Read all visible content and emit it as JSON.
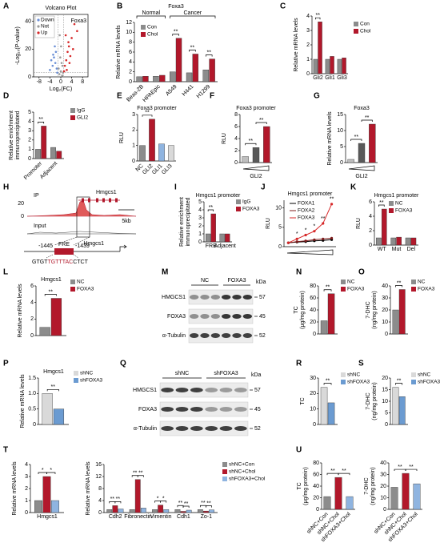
{
  "panel_labels": [
    "A",
    "B",
    "C",
    "D",
    "E",
    "F",
    "G",
    "H",
    "I",
    "J",
    "K",
    "L",
    "M",
    "N",
    "O",
    "P",
    "Q",
    "R",
    "S",
    "T",
    "U"
  ],
  "chart_data": [
    {
      "type": "scatter",
      "title": "Volcano Plot",
      "xlabel": "Log₂(FC)",
      "ylabel": [
        "-Log₁₀(P-value)"
      ],
      "annotations": [
        "Foxa3"
      ],
      "series": [
        {
          "name": "Down",
          "color": "#6b8fd6",
          "x": [
            -1.5,
            -2,
            -2.5,
            -3,
            -4,
            -1.8,
            -2.2,
            -3.5,
            -1.3,
            -2.8
          ],
          "values": [
            6,
            10,
            14,
            8,
            5,
            18,
            22,
            12,
            3,
            16
          ]
        },
        {
          "name": "Not",
          "color": "#9a9a9a",
          "x": [
            -0.5,
            0,
            0.5,
            -0.8,
            0.3,
            0.8,
            -0.2,
            0.1,
            -0.4,
            0.6
          ],
          "values": [
            2,
            4,
            1,
            6,
            10,
            3,
            14,
            22,
            30,
            8
          ]
        },
        {
          "name": "Up",
          "color": "#d62728",
          "x": [
            1.5,
            2,
            2.5,
            3,
            3.5,
            4,
            5,
            2.2,
            3.2,
            4.5,
            1.8,
            2.8,
            6,
            1.2
          ],
          "values": [
            8,
            12,
            18,
            22,
            15,
            28,
            38,
            5,
            10,
            20,
            30,
            25,
            33,
            4
          ]
        }
      ],
      "xlim": [
        -10,
        10
      ],
      "xticks": [
        -8,
        -4,
        0,
        4,
        8
      ],
      "ylim": [
        0,
        45
      ],
      "yticks": [
        0,
        20,
        40
      ]
    },
    {
      "type": "bar",
      "title": "Foxa3",
      "groups": [
        "Normal",
        "Cancer"
      ],
      "ylabel": [
        "Relative mRNA levels"
      ],
      "categories": [
        "Beas-2B",
        "HPAEpic",
        "A549",
        "H441",
        "H1299"
      ],
      "series": [
        {
          "name": "Con",
          "color": "#8c8c8c",
          "values": [
            1,
            1.1,
            2,
            1.8,
            2.4
          ]
        },
        {
          "name": "Chol",
          "color": "#b2182b",
          "values": [
            1.1,
            1.3,
            8.8,
            5.6,
            4.6
          ]
        }
      ],
      "ylim": [
        0,
        12
      ],
      "yticks": [
        0,
        2,
        4,
        6,
        8,
        10,
        12
      ],
      "annotations": [
        "**",
        "**",
        "**"
      ]
    },
    {
      "type": "bar",
      "ylabel": [
        "Relative mRNA levels"
      ],
      "categories": [
        "Gli2",
        "Gli1",
        "Gli3"
      ],
      "series": [
        {
          "name": "Con",
          "color": "#8c8c8c",
          "values": [
            1,
            1,
            1
          ]
        },
        {
          "name": "Chol",
          "color": "#b2182b",
          "values": [
            3.6,
            1.2,
            1.1
          ]
        }
      ],
      "ylim": [
        0,
        4
      ],
      "yticks": [
        0,
        1,
        2,
        3,
        4
      ],
      "annotations": [
        "**"
      ]
    },
    {
      "type": "bar",
      "ylabel": [
        "Relative enrichment",
        "immunoprecipitated"
      ],
      "categories": [
        "Promoter",
        "Adjacent"
      ],
      "series": [
        {
          "name": "IgG",
          "color": "#8c8c8c",
          "values": [
            1,
            1.2
          ]
        },
        {
          "name": "GLI2",
          "color": "#b2182b",
          "values": [
            3.5,
            0.8
          ]
        }
      ],
      "ylim": [
        0,
        5
      ],
      "yticks": [
        0,
        1,
        2,
        3,
        4,
        5
      ],
      "annotations": [
        "**"
      ]
    },
    {
      "type": "bar",
      "title": "Foxa3 promoter",
      "ylabel": [
        "RLU"
      ],
      "categories": [
        "NC",
        "GLI2",
        "GLI1",
        "GLI3"
      ],
      "values": [
        1,
        2.7,
        1.1,
        1
      ],
      "colors": [
        "#8c8c8c",
        "#b2182b",
        "#8fb4e0",
        "#d9d9d9"
      ],
      "ylim": [
        0,
        3
      ],
      "yticks": [
        0,
        1,
        2,
        3
      ],
      "annotations": [
        "**"
      ]
    },
    {
      "type": "bar",
      "title": "Foxa3 promoter",
      "ylabel": [
        "RLU"
      ],
      "xlabel": "GLI2",
      "categories": [
        null,
        null,
        null
      ],
      "values": [
        1,
        2.5,
        6
      ],
      "colors": [
        "#bfbfbf",
        "#595959",
        "#b2182b"
      ],
      "ylim": [
        0,
        8
      ],
      "yticks": [
        0,
        2,
        4,
        6,
        8
      ],
      "annotations": [
        "**",
        "**"
      ]
    },
    {
      "type": "bar",
      "title": "Foxa3",
      "ylabel": [
        "Relative mRNA levels"
      ],
      "xlabel": "GLI2",
      "categories": [
        null,
        null,
        null
      ],
      "values": [
        1,
        6,
        12
      ],
      "colors": [
        "#bfbfbf",
        "#595959",
        "#b2182b"
      ],
      "ylim": [
        0,
        15
      ],
      "yticks": [
        0,
        5,
        10,
        15
      ],
      "annotations": [
        "**",
        "**"
      ]
    },
    {
      "type": "bar",
      "title": "Hmgcs1 promoter",
      "ylabel": [
        "Relative enrichment",
        "immunoprecipitated"
      ],
      "categories": [
        "FRE",
        "Adjacent"
      ],
      "series": [
        {
          "name": "IgG",
          "color": "#8c8c8c",
          "values": [
            1,
            1
          ]
        },
        {
          "name": "FOXA3",
          "color": "#b2182b",
          "values": [
            3.5,
            1
          ]
        }
      ],
      "ylim": [
        0,
        5
      ],
      "yticks": [
        0,
        1,
        2,
        3,
        4,
        5
      ],
      "annotations": [
        "**"
      ]
    },
    {
      "type": "line",
      "title": "Hmgcs1 promoter",
      "ylabel": [
        "RLU"
      ],
      "categories": [
        null,
        null,
        null,
        null,
        null,
        null
      ],
      "series": [
        {
          "name": "FOXA1",
          "color": "#000000",
          "values": [
            1,
            1.2,
            1.3,
            1.5,
            1.6,
            1.8
          ]
        },
        {
          "name": "FOXA2",
          "color": "#7f1d1d",
          "values": [
            1,
            1.3,
            1.5,
            1.8,
            2,
            2.2
          ]
        },
        {
          "name": "FOXA3",
          "color": "#d62728",
          "values": [
            1,
            2,
            3,
            4,
            6,
            11
          ]
        }
      ],
      "ylim": [
        0,
        12
      ],
      "yticks": [
        0,
        5,
        10
      ],
      "annotations": [
        "*",
        "*",
        "*",
        "**",
        "**"
      ]
    },
    {
      "type": "bar",
      "title": "Hmgcs1 promoter",
      "ylabel": [
        "RLU"
      ],
      "categories": [
        "WT",
        "Mut",
        "Del"
      ],
      "series": [
        {
          "name": "NC",
          "color": "#8c8c8c",
          "values": [
            1,
            1,
            1
          ]
        },
        {
          "name": "FOXA3",
          "color": "#b2182b",
          "values": [
            5,
            1.1,
            1
          ]
        }
      ],
      "ylim": [
        0,
        6
      ],
      "yticks": [
        0,
        2,
        4,
        6
      ],
      "annotations": [
        "**"
      ]
    },
    {
      "type": "bar",
      "title": "Hmgcs1",
      "ylabel": [
        "Relative mRNA levels"
      ],
      "categories": [
        null
      ],
      "series": [
        {
          "name": "NC",
          "color": "#8c8c8c",
          "values": [
            1
          ]
        },
        {
          "name": "FOXA3",
          "color": "#b2182b",
          "values": [
            4.5
          ]
        }
      ],
      "ylim": [
        0,
        6
      ],
      "yticks": [
        0,
        2,
        4,
        6
      ],
      "annotations": [
        "**"
      ]
    },
    {
      "type": "bar",
      "ylabel": [
        "TC",
        "(μg/mg protein)"
      ],
      "categories": [
        null
      ],
      "series": [
        {
          "name": "NC",
          "color": "#8c8c8c",
          "values": [
            22
          ]
        },
        {
          "name": "FOXA3",
          "color": "#b2182b",
          "values": [
            67
          ]
        }
      ],
      "ylim": [
        0,
        80
      ],
      "yticks": [
        0,
        20,
        40,
        60,
        80
      ],
      "annotations": [
        "**"
      ]
    },
    {
      "type": "bar",
      "ylabel": [
        "7-DHC",
        "(ng/mg protein)"
      ],
      "categories": [
        null
      ],
      "series": [
        {
          "name": "NC",
          "color": "#8c8c8c",
          "values": [
            20
          ]
        },
        {
          "name": "FOXA3",
          "color": "#b2182b",
          "values": [
            37
          ]
        }
      ],
      "ylim": [
        0,
        40
      ],
      "yticks": [
        0,
        10,
        20,
        30,
        40
      ],
      "annotations": [
        "**"
      ]
    },
    {
      "type": "bar",
      "title": "Hmgcs1",
      "ylabel": [
        "Relative mRNA levels"
      ],
      "categories": [
        null
      ],
      "series": [
        {
          "name": "shNC",
          "color": "#d9d9d9",
          "values": [
            1
          ]
        },
        {
          "name": "shFOXA3",
          "color": "#6b9bd1",
          "values": [
            0.5
          ]
        }
      ],
      "ylim": [
        0,
        1.5
      ],
      "yticks": [
        0,
        0.5,
        {
          "value": 1,
          "label": "1.0"
        },
        1.5
      ],
      "annotations": [
        "**"
      ]
    },
    {
      "type": "bar",
      "ylabel": [
        "TC"
      ],
      "categories": [
        null
      ],
      "series": [
        {
          "name": "shNC",
          "color": "#d9d9d9",
          "values": [
            24
          ]
        },
        {
          "name": "shFOXA3",
          "color": "#6b9bd1",
          "values": [
            14
          ]
        }
      ],
      "ylim": [
        0,
        30
      ],
      "yticks": [
        0,
        10,
        20,
        30
      ],
      "annotations": [
        "**"
      ]
    },
    {
      "type": "bar",
      "ylabel": [
        "7-DHC",
        "(ng/mg protein)"
      ],
      "categories": [
        null
      ],
      "series": [
        {
          "name": "shNC",
          "color": "#d9d9d9",
          "values": [
            16
          ]
        },
        {
          "name": "shFOXA3",
          "color": "#6b9bd1",
          "values": [
            12
          ]
        }
      ],
      "ylim": [
        0,
        20
      ],
      "yticks": [
        0,
        5,
        10,
        15,
        20
      ],
      "annotations": [
        "**"
      ]
    },
    {
      "type": "bar",
      "ylabel": [
        "Relative mRNA levels"
      ],
      "categories": [
        "Hmgcs1"
      ],
      "series": [
        {
          "color": "#8c8c8c",
          "values": [
            1
          ]
        },
        {
          "color": "#b2182b",
          "values": [
            3
          ]
        },
        {
          "color": "#8fb4e0",
          "values": [
            1
          ]
        }
      ],
      "ylim": [
        0,
        4
      ],
      "yticks": [
        0,
        1,
        2,
        3,
        4
      ],
      "annotations": [
        "*",
        "*"
      ]
    },
    {
      "type": "bar",
      "ylabel": [
        "Relative mRNA levels"
      ],
      "categories": [
        "Cdh2",
        "Fibronectin",
        "Vimentin",
        "Cdh1",
        "Zo-1"
      ],
      "series": [
        {
          "name": "shNC+Con",
          "color": "#8c8c8c",
          "values": [
            1,
            1,
            1,
            1,
            1
          ]
        },
        {
          "name": "shNC+Chol",
          "color": "#b2182b",
          "values": [
            2.3,
            11,
            2.5,
            0.4,
            0.5
          ]
        },
        {
          "name": "shFOXA3+Chol",
          "color": "#8fb4e0",
          "values": [
            1.2,
            1.5,
            1,
            0.8,
            0.9
          ]
        }
      ],
      "ylim": [
        0,
        16
      ],
      "yticks": [
        0,
        4,
        8,
        12,
        16
      ],
      "annotations": [
        "**",
        "**",
        "**",
        "**",
        "*",
        "*",
        "**",
        "**",
        "**",
        "**"
      ]
    },
    {
      "type": "bar",
      "ylabel": [
        "TC",
        "(μg/mg protein)"
      ],
      "categories": [
        "shNC+Con",
        "shNC+Chol",
        "shFOXA3+Chol"
      ],
      "values": [
        22,
        55,
        22
      ],
      "colors": [
        "#8c8c8c",
        "#b2182b",
        "#8fb4e0"
      ],
      "ylim": [
        0,
        80
      ],
      "yticks": [
        0,
        20,
        40,
        60,
        80
      ],
      "annotations": [
        "**",
        "**"
      ]
    },
    {
      "type": "bar",
      "ylabel": [
        "7-DHC",
        "(ng/mg protein)"
      ],
      "categories": [
        "shNC+Con",
        "shNC+Chol",
        "shFOXA3+Chol"
      ],
      "values": [
        19,
        31,
        22
      ],
      "colors": [
        "#8c8c8c",
        "#b2182b",
        "#8fb4e0"
      ],
      "ylim": [
        0,
        40
      ],
      "yticks": [
        0,
        10,
        20,
        30,
        40
      ],
      "annotations": [
        "**",
        "**"
      ]
    }
  ],
  "blots": [
    {
      "lanes": [
        "NC",
        "FOXA3"
      ],
      "proteins": [
        "HMGCS1",
        "FOXA3",
        "α-Tubulin"
      ],
      "unit": "kDa",
      "sizes": [
        57,
        45,
        52
      ]
    },
    {
      "lanes": [
        "shNC",
        "shFOXA3"
      ],
      "proteins": [
        "HMGCS1",
        "FOXA3",
        "α-Tubulin"
      ],
      "unit": "kDa",
      "sizes": [
        57,
        45,
        52
      ]
    }
  ],
  "chip": {
    "tracks": [
      "IP",
      "Input"
    ],
    "scale": [
      20,
      0
    ],
    "gene": "Hmgcs1",
    "bar": "5kb",
    "element": "FRE",
    "start": "-1445",
    "end": "-1439",
    "target": "Hmgcs1",
    "sequence": [
      "GTGT",
      "TGTTTAC",
      "CTCT"
    ]
  }
}
